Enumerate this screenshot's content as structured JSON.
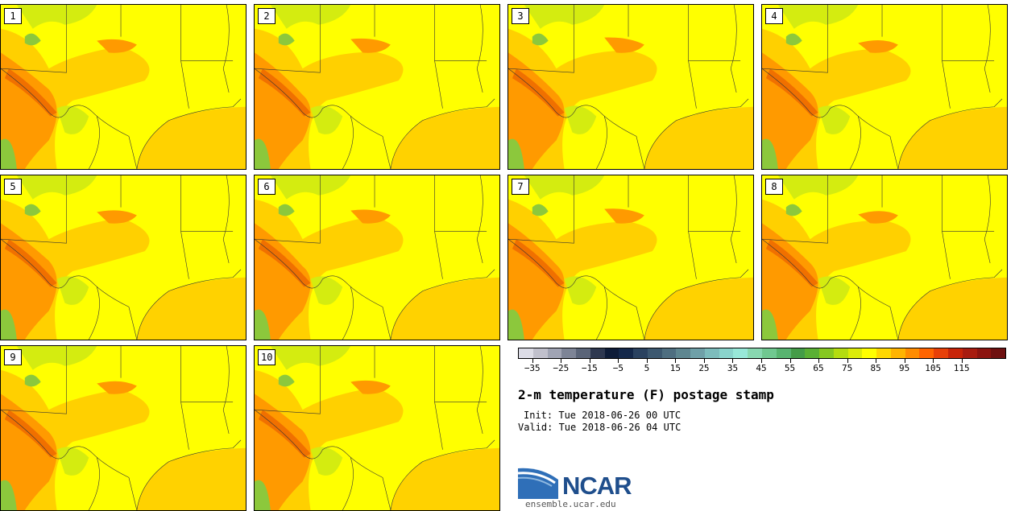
{
  "members": [
    "1",
    "2",
    "3",
    "4",
    "5",
    "6",
    "7",
    "8",
    "9",
    "10"
  ],
  "colorbar": {
    "colors": [
      "#dcdce6",
      "#c0c0cc",
      "#a0a4b4",
      "#7d8496",
      "#5a6478",
      "#2e3850",
      "#0e1c38",
      "#14284a",
      "#2a4260",
      "#3c5870",
      "#4e6e80",
      "#5e8690",
      "#6fa0a8",
      "#7dbcbc",
      "#8ad4cc",
      "#98e8d8",
      "#88d8b0",
      "#70c890",
      "#58b470",
      "#449c48",
      "#5ab034",
      "#86c820",
      "#b4dc10",
      "#dcec08",
      "#ffff00",
      "#ffd800",
      "#ffb400",
      "#ff8c00",
      "#ff6400",
      "#e84008",
      "#c82408",
      "#a81c10",
      "#8c1410",
      "#6e1010"
    ],
    "tick_labels": [
      "-35",
      "-25",
      "-15",
      "-5",
      "5",
      "15",
      "25",
      "35",
      "45",
      "55",
      "65",
      "75",
      "85",
      "95",
      "105",
      "115"
    ],
    "min": -40,
    "max": 120
  },
  "text": {
    "title": "2-m temperature (F) postage stamp",
    "init": "Init: Tue 2018-06-26 00 UTC",
    "valid": "Valid: Tue 2018-06-26 04 UTC",
    "logo": "NCAR",
    "url": "ensemble.ucar.edu"
  },
  "colors": {
    "field_base": "#ffff00",
    "field_warm": "#ffd000",
    "field_hot": "#ff9a00",
    "field_hottest": "#f07000",
    "field_cool": "#d4ec10",
    "field_green": "#8cc83c",
    "gulf": "#ffd200",
    "border": "#333333",
    "logo_blue": "#1f4e8c"
  }
}
